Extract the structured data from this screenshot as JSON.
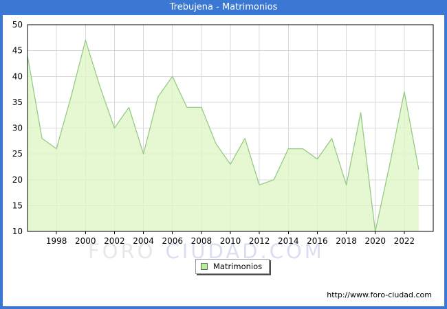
{
  "title": "Trebujena - Matrimonios",
  "watermark": {
    "part1": "FORO",
    "part2": "CIUDAD.COM"
  },
  "footer": {
    "url": "http://www.foro-ciudad.com"
  },
  "colors": {
    "frame_blue": "#3b78d4",
    "plot_border": "#000000",
    "gridline": "#d8d8d8",
    "area_fill": "#e0f6c6",
    "line_green": "#94cb85",
    "legend_swatch": "#b6f098",
    "watermark_gray": "#e7e7e7",
    "watermark_blue": "#d9def2",
    "title_text": "#ffffff"
  },
  "chart_data": {
    "type": "area",
    "title": "Trebujena - Matrimonios",
    "xlabel": "",
    "ylabel": "",
    "x": [
      1996,
      1997,
      1998,
      1999,
      2000,
      2001,
      2002,
      2003,
      2004,
      2005,
      2006,
      2007,
      2008,
      2009,
      2010,
      2011,
      2012,
      2013,
      2014,
      2015,
      2016,
      2017,
      2018,
      2019,
      2020,
      2021,
      2022,
      2023
    ],
    "series": [
      {
        "name": "Matrimonios",
        "values": [
          44,
          28,
          26,
          36,
          47,
          38,
          30,
          34,
          25,
          36,
          40,
          34,
          34,
          27,
          23,
          28,
          19,
          20,
          26,
          26,
          24,
          28,
          19,
          33,
          10,
          23,
          37,
          22
        ]
      }
    ],
    "xlim": [
      1996,
      2024
    ],
    "ylim": [
      10,
      50
    ],
    "xticks": [
      1998,
      2000,
      2002,
      2004,
      2006,
      2008,
      2010,
      2012,
      2014,
      2016,
      2018,
      2020,
      2022
    ],
    "yticks": [
      10,
      15,
      20,
      25,
      30,
      35,
      40,
      45,
      50
    ],
    "grid": true,
    "legend_position": "bottom-center"
  }
}
